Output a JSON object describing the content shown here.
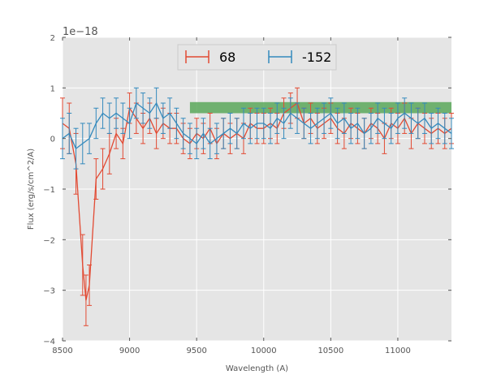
{
  "chart_data": {
    "type": "line",
    "title": "",
    "xlabel": "Wavelength (A)",
    "ylabel": "Flux (erg/s/cm^2/A)",
    "y_offset_label": "1e−18",
    "xlim": [
      8500,
      11400
    ],
    "ylim": [
      -4,
      2
    ],
    "x_ticks": [
      8500,
      9000,
      9500,
      10000,
      10500,
      11000
    ],
    "x_tick_labels": [
      "8500",
      "9000",
      "9500",
      "10000",
      "10500",
      "11000"
    ],
    "y_ticks": [
      -4,
      -3,
      -2,
      -1,
      0,
      1,
      2
    ],
    "y_tick_labels": [
      "−4",
      "−3",
      "−2",
      "−1",
      "0",
      "1",
      "2"
    ],
    "grid": true,
    "legend_position": "top-center",
    "band": {
      "x_start": 9450,
      "x_end": 11400,
      "y_low": 0.5,
      "y_high": 0.72,
      "color": "#5aa85a"
    },
    "series": [
      {
        "name": "68",
        "color": "#e24a33",
        "x": [
          8500,
          8550,
          8600,
          8650,
          8675,
          8700,
          8750,
          8800,
          8850,
          8900,
          8950,
          9000,
          9050,
          9100,
          9150,
          9200,
          9250,
          9300,
          9350,
          9400,
          9450,
          9500,
          9550,
          9600,
          9650,
          9700,
          9750,
          9800,
          9850,
          9900,
          9950,
          10000,
          10050,
          10100,
          10150,
          10200,
          10250,
          10300,
          10350,
          10400,
          10450,
          10500,
          10550,
          10600,
          10650,
          10700,
          10750,
          10800,
          10850,
          10900,
          10950,
          11000,
          11050,
          11100,
          11150,
          11200,
          11250,
          11300,
          11350,
          11400
        ],
        "values": [
          0.3,
          0.2,
          -0.5,
          -2.5,
          -3.2,
          -2.9,
          -0.8,
          -0.6,
          -0.3,
          0.1,
          -0.1,
          0.6,
          0.4,
          0.2,
          0.4,
          0.1,
          0.3,
          0.2,
          0.2,
          0.0,
          -0.1,
          0.1,
          0.0,
          0.2,
          -0.1,
          0.1,
          0.0,
          0.1,
          0.0,
          0.3,
          0.2,
          0.2,
          0.3,
          0.2,
          0.5,
          0.6,
          0.7,
          0.3,
          0.4,
          0.2,
          0.3,
          0.4,
          0.2,
          0.1,
          0.3,
          0.2,
          0.1,
          0.3,
          0.2,
          0.0,
          0.3,
          0.2,
          0.4,
          0.1,
          0.3,
          0.2,
          0.1,
          0.2,
          0.1,
          0.2
        ],
        "errors": [
          0.5,
          0.5,
          0.6,
          0.6,
          0.5,
          0.4,
          0.4,
          0.4,
          0.4,
          0.3,
          0.3,
          0.3,
          0.3,
          0.3,
          0.3,
          0.3,
          0.3,
          0.3,
          0.3,
          0.3,
          0.3,
          0.3,
          0.3,
          0.3,
          0.3,
          0.3,
          0.3,
          0.3,
          0.3,
          0.3,
          0.3,
          0.3,
          0.3,
          0.3,
          0.3,
          0.3,
          0.3,
          0.3,
          0.3,
          0.3,
          0.3,
          0.3,
          0.3,
          0.3,
          0.3,
          0.3,
          0.3,
          0.3,
          0.3,
          0.3,
          0.3,
          0.3,
          0.3,
          0.3,
          0.3,
          0.3,
          0.3,
          0.3,
          0.3,
          0.3
        ]
      },
      {
        "name": "-152",
        "color": "#348abd",
        "x": [
          8500,
          8550,
          8600,
          8650,
          8700,
          8750,
          8800,
          8850,
          8900,
          8950,
          9000,
          9050,
          9100,
          9150,
          9200,
          9250,
          9300,
          9350,
          9400,
          9450,
          9500,
          9550,
          9600,
          9650,
          9700,
          9750,
          9800,
          9850,
          9900,
          9950,
          10000,
          10050,
          10100,
          10150,
          10200,
          10250,
          10300,
          10350,
          10400,
          10450,
          10500,
          10550,
          10600,
          10650,
          10700,
          10750,
          10800,
          10850,
          10900,
          10950,
          11000,
          11050,
          11100,
          11150,
          11200,
          11250,
          11300,
          11350,
          11400
        ],
        "values": [
          0.0,
          0.1,
          -0.2,
          -0.1,
          0.0,
          0.3,
          0.5,
          0.4,
          0.5,
          0.4,
          0.3,
          0.7,
          0.6,
          0.5,
          0.7,
          0.4,
          0.5,
          0.3,
          0.1,
          0.0,
          -0.1,
          0.1,
          -0.1,
          0.0,
          0.1,
          0.2,
          0.1,
          0.3,
          0.2,
          0.3,
          0.3,
          0.2,
          0.4,
          0.3,
          0.5,
          0.4,
          0.3,
          0.2,
          0.3,
          0.4,
          0.5,
          0.3,
          0.4,
          0.2,
          0.3,
          0.1,
          0.2,
          0.4,
          0.3,
          0.2,
          0.4,
          0.5,
          0.4,
          0.3,
          0.4,
          0.2,
          0.3,
          0.2,
          0.1
        ],
        "errors": [
          0.4,
          0.4,
          0.4,
          0.4,
          0.3,
          0.3,
          0.3,
          0.3,
          0.3,
          0.3,
          0.3,
          0.3,
          0.3,
          0.3,
          0.3,
          0.3,
          0.3,
          0.3,
          0.3,
          0.3,
          0.3,
          0.3,
          0.3,
          0.3,
          0.3,
          0.3,
          0.3,
          0.3,
          0.3,
          0.3,
          0.3,
          0.3,
          0.3,
          0.3,
          0.3,
          0.3,
          0.3,
          0.3,
          0.3,
          0.3,
          0.3,
          0.3,
          0.3,
          0.3,
          0.3,
          0.3,
          0.3,
          0.3,
          0.3,
          0.3,
          0.3,
          0.3,
          0.3,
          0.3,
          0.3,
          0.3,
          0.3,
          0.3,
          0.3
        ]
      }
    ]
  }
}
